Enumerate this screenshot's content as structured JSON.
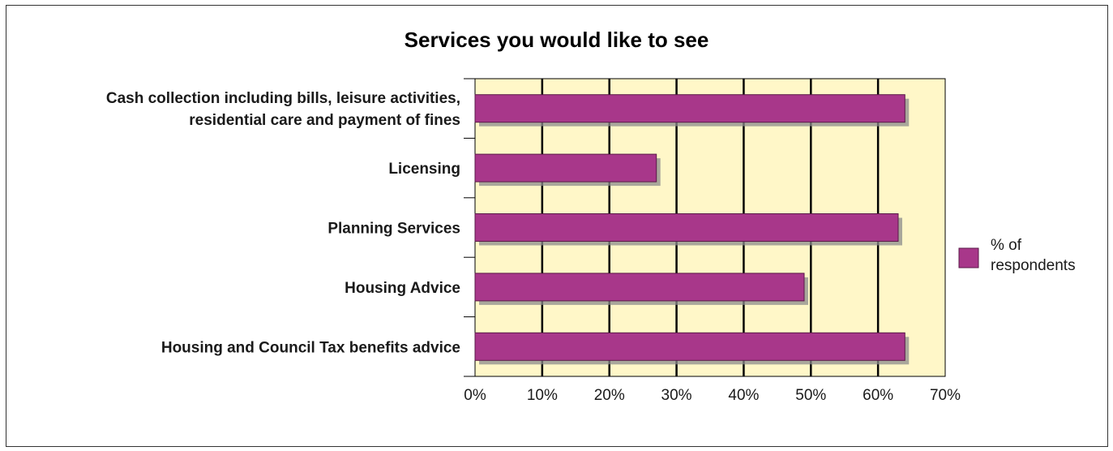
{
  "chart_data": {
    "type": "bar",
    "orientation": "horizontal",
    "title": "Services you would like to see",
    "categories": [
      [
        "Cash collection including bills, leisure activities,",
        "residential care and payment of fines"
      ],
      [
        "Licensing"
      ],
      [
        "Planning Services"
      ],
      [
        "Housing Advice"
      ],
      [
        "Housing and Council Tax benefits advice"
      ]
    ],
    "series": [
      {
        "name": "% of respondents",
        "values": [
          64,
          27,
          63,
          49,
          64
        ]
      }
    ],
    "xlim": [
      0,
      70
    ],
    "xticks": [
      "0%",
      "10%",
      "20%",
      "30%",
      "40%",
      "50%",
      "60%",
      "70%"
    ],
    "grid": "vertical",
    "legend": "right",
    "legend_lines": [
      "% of",
      "respondents"
    ],
    "colors": {
      "bar": "#a8378a",
      "plot_bg": "#fff7c8",
      "shadow": "#8c8c8c"
    }
  }
}
